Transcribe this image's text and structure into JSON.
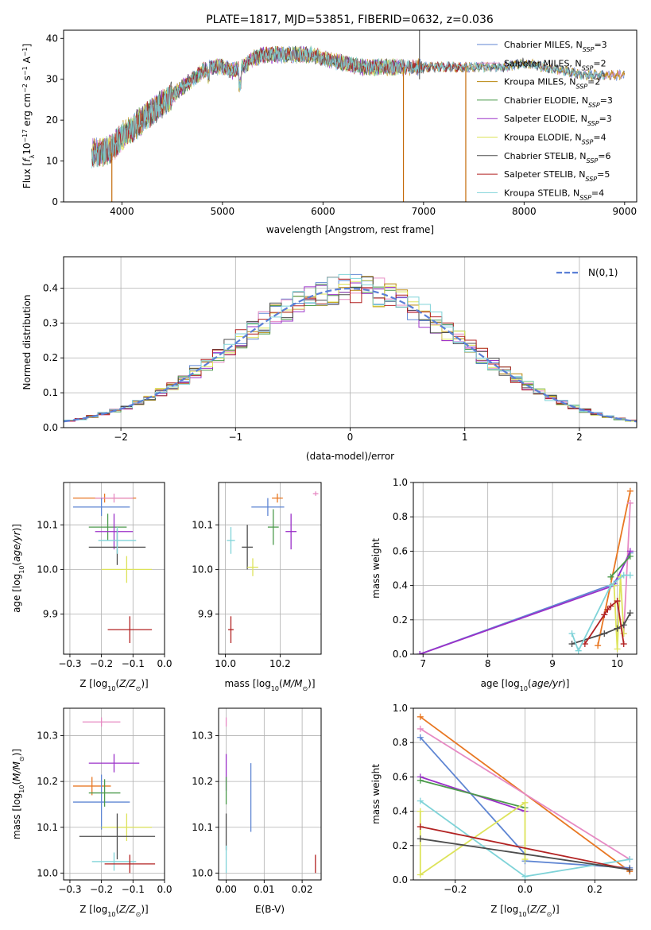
{
  "figure": {
    "title": "PLATE=1817, MJD=53851, FIBERID=0632, z=0.036"
  },
  "chart_data": [
    {
      "id": "spectrum",
      "type": "line",
      "title": "PLATE=1817, MJD=53851, FIBERID=0632, z=0.036",
      "xlabel": "wavelength [Angstrom, rest frame]",
      "ylabel": "Flux [f_λ10^-17 erg cm^-2 s^-1 A^-1]",
      "xlim": [
        3420,
        9120
      ],
      "ylim": [
        0,
        42
      ],
      "xticks": [
        4000,
        5000,
        6000,
        7000,
        8000,
        9000
      ],
      "yticks": [
        0,
        10,
        20,
        30,
        40
      ],
      "legend_position": "top-right",
      "continuum": {
        "x": [
          3700,
          3800,
          3900,
          4000,
          4100,
          4200,
          4300,
          4400,
          4500,
          4600,
          4700,
          4800,
          4900,
          5000,
          5100,
          5200,
          5300,
          5400,
          5500,
          5600,
          5700,
          5800,
          5900,
          6000,
          6200,
          6400,
          6600,
          6800,
          7000,
          7200,
          7400,
          7600,
          7800,
          8000,
          8200,
          8400,
          8600,
          8800
        ],
        "y": [
          12,
          12,
          13,
          16,
          18,
          20,
          22,
          24,
          26,
          28,
          30,
          32,
          33,
          33,
          32,
          33,
          35,
          36,
          36,
          36,
          36,
          36,
          36,
          35,
          34,
          33,
          33,
          33,
          33,
          33,
          33,
          33,
          33,
          34,
          33,
          32,
          31,
          31
        ]
      },
      "series": [
        {
          "name": "Chabrier MILES, N_SSP=3",
          "legend_main": "Chabrier MILES, N",
          "legend_sub": "SSP",
          "legend_tail": "=3",
          "color": "#5f86d3",
          "xmin": 3700,
          "xmax": 9000
        },
        {
          "name": "Salpeter MILES, N_SSP=2",
          "legend_main": "Salpeter MILES, N",
          "legend_sub": "SSP",
          "legend_tail": "=2",
          "color": "#e68ac3",
          "xmin": 3700,
          "xmax": 9000
        },
        {
          "name": "Kroupa MILES, N_SSP=2",
          "legend_main": "Kroupa MILES, N",
          "legend_sub": "SSP",
          "legend_tail": "=2",
          "color": "#b8860b",
          "xmin": 3700,
          "xmax": 9000
        },
        {
          "name": "Chabrier ELODIE, N_SSP=3",
          "legend_main": "Chabrier ELODIE, N",
          "legend_sub": "SSP",
          "legend_tail": "=3",
          "color": "#4c9a4c",
          "xmin": 3700,
          "xmax": 6800
        },
        {
          "name": "Salpeter ELODIE, N_SSP=3",
          "legend_main": "Salpeter ELODIE, N",
          "legend_sub": "SSP",
          "legend_tail": "=3",
          "color": "#9b30c8",
          "xmin": 3700,
          "xmax": 6800
        },
        {
          "name": "Kroupa ELODIE, N_SSP=4",
          "legend_main": "Kroupa ELODIE, N",
          "legend_sub": "SSP",
          "legend_tail": "=4",
          "color": "#dde35a",
          "xmin": 3700,
          "xmax": 6800
        },
        {
          "name": "Chabrier STELIB, N_SSP=6",
          "legend_main": "Chabrier STELIB, N",
          "legend_sub": "SSP",
          "legend_tail": "=6",
          "color": "#4d4d4d",
          "xmin": 3700,
          "xmax": 8800
        },
        {
          "name": "Salpeter STELIB, N_SSP=5",
          "legend_main": "Salpeter STELIB, N",
          "legend_sub": "SSP",
          "legend_tail": "=5",
          "color": "#b22222",
          "xmin": 3700,
          "xmax": 7420
        },
        {
          "name": "Kroupa STELIB, N_SSP=4",
          "legend_main": "Kroupa STELIB, N",
          "legend_sub": "SSP",
          "legend_tail": "=4",
          "color": "#7fd3d8",
          "xmin": 3700,
          "xmax": 8800
        }
      ],
      "drops": [
        {
          "x": 3900,
          "from": 12,
          "to": 0
        },
        {
          "x": 6800,
          "from": 33,
          "to": 0
        },
        {
          "x": 7420,
          "from": 33,
          "to": 0
        }
      ]
    },
    {
      "id": "residuals",
      "type": "line",
      "xlabel": "(data-model)/error",
      "ylabel": "Normed distribution",
      "xlim": [
        -2.5,
        2.5
      ],
      "ylim": [
        0,
        0.49
      ],
      "xticks": [
        -2,
        -1,
        0,
        1,
        2
      ],
      "yticks": [
        0.0,
        0.1,
        0.2,
        0.3,
        0.4
      ],
      "grid": true,
      "legend_position": "top-right",
      "legend_label": "N(0,1)",
      "reference": {
        "name": "N(0,1)",
        "mean": 0,
        "sigma": 1,
        "color": "#5b7fd6",
        "dash": "8,4"
      },
      "bin_width": 0.1
    },
    {
      "id": "age-vs-z",
      "type": "errorbar",
      "xlabel": "Z [log10(Z/Z⊙)]",
      "ylabel": "age [log10(age/yr)]",
      "xlim": [
        -0.32,
        0.0
      ],
      "ylim": [
        9.81,
        10.195
      ],
      "xticks": [
        -0.3,
        -0.2,
        -0.1,
        0.0
      ],
      "yticks": [
        9.9,
        10.0,
        10.1
      ],
      "grid": true,
      "points": [
        {
          "x": -0.19,
          "y": 10.16,
          "xerr": 0.1,
          "yerr": 0.01,
          "color": "#e87722"
        },
        {
          "x": -0.16,
          "y": 10.16,
          "xerr": 0.06,
          "yerr": 0.01,
          "color": "#e68ac3"
        },
        {
          "x": -0.2,
          "y": 10.14,
          "xerr": 0.09,
          "yerr": 0.02,
          "color": "#5f86d3"
        },
        {
          "x": -0.18,
          "y": 10.095,
          "xerr": 0.06,
          "yerr": 0.03,
          "color": "#4c9a4c"
        },
        {
          "x": -0.16,
          "y": 10.085,
          "xerr": 0.06,
          "yerr": 0.04,
          "color": "#9b30c8"
        },
        {
          "x": -0.15,
          "y": 10.05,
          "xerr": 0.09,
          "yerr": 0.04,
          "color": "#4d4d4d"
        },
        {
          "x": -0.15,
          "y": 10.065,
          "xerr": 0.06,
          "yerr": 0.03,
          "color": "#7fd3d8"
        },
        {
          "x": -0.12,
          "y": 10.0,
          "xerr": 0.08,
          "yerr": 0.03,
          "color": "#dde35a"
        },
        {
          "x": -0.11,
          "y": 9.865,
          "xerr": 0.07,
          "yerr": 0.03,
          "color": "#b22222"
        }
      ]
    },
    {
      "id": "age-vs-mass",
      "type": "errorbar",
      "xlabel": "mass [log10(M/M⊙)]",
      "ylabel": "",
      "xlim": [
        9.975,
        10.35
      ],
      "ylim": [
        9.81,
        10.195
      ],
      "xticks": [
        10.0,
        10.2
      ],
      "yticks": [
        9.9,
        10.0,
        10.1
      ],
      "grid": true,
      "points": [
        {
          "x": 10.33,
          "y": 10.17,
          "xerr": 0.01,
          "yerr": 0.005,
          "color": "#e68ac3"
        },
        {
          "x": 10.19,
          "y": 10.16,
          "xerr": 0.02,
          "yerr": 0.01,
          "color": "#e87722"
        },
        {
          "x": 10.155,
          "y": 10.14,
          "xerr": 0.06,
          "yerr": 0.02,
          "color": "#5f86d3"
        },
        {
          "x": 10.02,
          "y": 10.065,
          "xerr": 0.015,
          "yerr": 0.03,
          "color": "#7fd3d8"
        },
        {
          "x": 10.08,
          "y": 10.05,
          "xerr": 0.02,
          "yerr": 0.05,
          "color": "#4d4d4d"
        },
        {
          "x": 10.175,
          "y": 10.095,
          "xerr": 0.02,
          "yerr": 0.04,
          "color": "#4c9a4c"
        },
        {
          "x": 10.24,
          "y": 10.085,
          "xerr": 0.02,
          "yerr": 0.04,
          "color": "#9b30c8"
        },
        {
          "x": 10.1,
          "y": 10.005,
          "xerr": 0.02,
          "yerr": 0.02,
          "color": "#dde35a"
        },
        {
          "x": 10.02,
          "y": 9.865,
          "xerr": 0.01,
          "yerr": 0.03,
          "color": "#b22222"
        }
      ]
    },
    {
      "id": "mass-weight-vs-age",
      "type": "line",
      "xlabel": "age [log10(age/yr)]",
      "ylabel": "mass weight",
      "xlim": [
        6.85,
        10.3
      ],
      "ylim": [
        0,
        1.0
      ],
      "xticks": [
        7,
        8,
        9,
        10
      ],
      "yticks": [
        0.0,
        0.2,
        0.4,
        0.6,
        0.8,
        1.0
      ],
      "grid": true,
      "series": [
        {
          "color": "#5f86d3",
          "x": [
            6.95,
            9.95,
            10.2
          ],
          "y": [
            0.0,
            0.41,
            0.59
          ]
        },
        {
          "color": "#e87722",
          "x": [
            9.7,
            10.2
          ],
          "y": [
            0.05,
            0.95
          ]
        },
        {
          "color": "#e68ac3",
          "x": [
            10.1,
            10.2
          ],
          "y": [
            0.12,
            0.88
          ]
        },
        {
          "color": "#9b30c8",
          "x": [
            6.95,
            9.95,
            10.2
          ],
          "y": [
            0.0,
            0.4,
            0.6
          ]
        },
        {
          "color": "#4c9a4c",
          "x": [
            9.9,
            10.2
          ],
          "y": [
            0.45,
            0.57
          ]
        },
        {
          "color": "#dde35a",
          "x": [
            9.95,
            10.0,
            10.05,
            10.1
          ],
          "y": [
            0.4,
            0.03,
            0.45,
            0.12
          ]
        },
        {
          "color": "#4d4d4d",
          "x": [
            9.3,
            9.8,
            10.0,
            10.1,
            10.2
          ],
          "y": [
            0.06,
            0.12,
            0.15,
            0.17,
            0.24
          ]
        },
        {
          "color": "#b22222",
          "x": [
            9.5,
            9.8,
            9.85,
            9.9,
            10.0,
            10.1
          ],
          "y": [
            0.06,
            0.23,
            0.26,
            0.28,
            0.31,
            0.06
          ]
        },
        {
          "color": "#7fd3d8",
          "x": [
            9.3,
            9.4,
            9.9,
            10.1,
            10.2
          ],
          "y": [
            0.12,
            0.02,
            0.4,
            0.46,
            0.46
          ]
        }
      ]
    },
    {
      "id": "mass-vs-z",
      "type": "errorbar",
      "xlabel": "Z [log10(Z/Z⊙)]",
      "ylabel": "mass [log10(M/M⊙)]",
      "xlim": [
        -0.32,
        0.0
      ],
      "ylim": [
        9.985,
        10.36
      ],
      "xticks": [
        -0.3,
        -0.2,
        -0.1,
        0.0
      ],
      "yticks": [
        10.0,
        10.1,
        10.2,
        10.3
      ],
      "grid": true,
      "points": [
        {
          "x": -0.2,
          "y": 10.33,
          "xerr": 0.06,
          "yerr": 0.01,
          "color": "#e68ac3"
        },
        {
          "x": -0.16,
          "y": 10.24,
          "xerr": 0.08,
          "yerr": 0.02,
          "color": "#9b30c8"
        },
        {
          "x": -0.23,
          "y": 10.19,
          "xerr": 0.06,
          "yerr": 0.02,
          "color": "#e87722"
        },
        {
          "x": -0.2,
          "y": 10.155,
          "xerr": 0.09,
          "yerr": 0.06,
          "color": "#5f86d3"
        },
        {
          "x": -0.19,
          "y": 10.175,
          "xerr": 0.05,
          "yerr": 0.03,
          "color": "#4c9a4c"
        },
        {
          "x": -0.12,
          "y": 10.1,
          "xerr": 0.08,
          "yerr": 0.03,
          "color": "#dde35a"
        },
        {
          "x": -0.15,
          "y": 10.08,
          "xerr": 0.12,
          "yerr": 0.05,
          "color": "#4d4d4d"
        },
        {
          "x": -0.16,
          "y": 10.025,
          "xerr": 0.07,
          "yerr": 0.02,
          "color": "#7fd3d8"
        },
        {
          "x": -0.11,
          "y": 10.02,
          "xerr": 0.08,
          "yerr": 0.02,
          "color": "#b22222"
        }
      ]
    },
    {
      "id": "mass-vs-ebv",
      "type": "errorbar",
      "xlabel": "E(B-V)",
      "ylabel": "",
      "xlim": [
        -0.002,
        0.025
      ],
      "ylim": [
        9.985,
        10.36
      ],
      "xticks": [
        0.0,
        0.01,
        0.02
      ],
      "yticks": [
        10.0,
        10.1,
        10.2,
        10.3
      ],
      "grid": true,
      "points": [
        {
          "x": 0.0,
          "y": 10.33,
          "xerr": 0.0,
          "yerr": 0.01,
          "color": "#e68ac3"
        },
        {
          "x": 0.0,
          "y": 10.22,
          "xerr": 0.0,
          "yerr": 0.04,
          "color": "#9b30c8"
        },
        {
          "x": 0.0,
          "y": 10.18,
          "xerr": 0.0,
          "yerr": 0.03,
          "color": "#4c9a4c"
        },
        {
          "x": 0.0,
          "y": 10.09,
          "xerr": 0.0,
          "yerr": 0.04,
          "color": "#4d4d4d"
        },
        {
          "x": 0.0,
          "y": 10.03,
          "xerr": 0.0,
          "yerr": 0.03,
          "color": "#7fd3d8"
        },
        {
          "x": 0.0065,
          "y": 10.165,
          "xerr": 0.0,
          "yerr": 0.075,
          "color": "#5f86d3"
        },
        {
          "x": 0.0235,
          "y": 10.02,
          "xerr": 0.0,
          "yerr": 0.02,
          "color": "#b22222"
        }
      ]
    },
    {
      "id": "mass-weight-vs-z",
      "type": "line",
      "xlabel": "Z [log10(Z/Z⊙)]",
      "ylabel": "mass weight",
      "xlim": [
        -0.32,
        0.32
      ],
      "ylim": [
        0,
        1.0
      ],
      "xticks": [
        -0.2,
        0.0,
        0.2
      ],
      "yticks": [
        0.0,
        0.2,
        0.4,
        0.6,
        0.8,
        1.0
      ],
      "grid": true,
      "series": [
        {
          "color": "#e87722",
          "x": [
            -0.3,
            0.3
          ],
          "y": [
            0.95,
            0.05
          ]
        },
        {
          "color": "#e68ac3",
          "x": [
            -0.3,
            0.3
          ],
          "y": [
            0.88,
            0.12
          ]
        },
        {
          "color": "#5f86d3",
          "x": [
            -0.3,
            0.0,
            0.0,
            0.3
          ],
          "y": [
            0.83,
            0.15,
            0.11,
            0.07
          ]
        },
        {
          "color": "#9b30c8",
          "x": [
            -0.3,
            0.0
          ],
          "y": [
            0.6,
            0.4
          ]
        },
        {
          "color": "#4c9a4c",
          "x": [
            -0.3,
            0.0
          ],
          "y": [
            0.58,
            0.42
          ]
        },
        {
          "color": "#dde35a",
          "x": [
            -0.3,
            -0.3,
            0.0,
            0.0
          ],
          "y": [
            0.4,
            0.03,
            0.45,
            0.12
          ]
        },
        {
          "color": "#7fd3d8",
          "x": [
            -0.3,
            0.0,
            0.3
          ],
          "y": [
            0.46,
            0.02,
            0.12
          ]
        },
        {
          "color": "#b22222",
          "x": [
            -0.3,
            0.3
          ],
          "y": [
            0.31,
            0.06
          ]
        },
        {
          "color": "#4d4d4d",
          "x": [
            -0.3,
            0.3
          ],
          "y": [
            0.24,
            0.06
          ]
        }
      ]
    }
  ]
}
